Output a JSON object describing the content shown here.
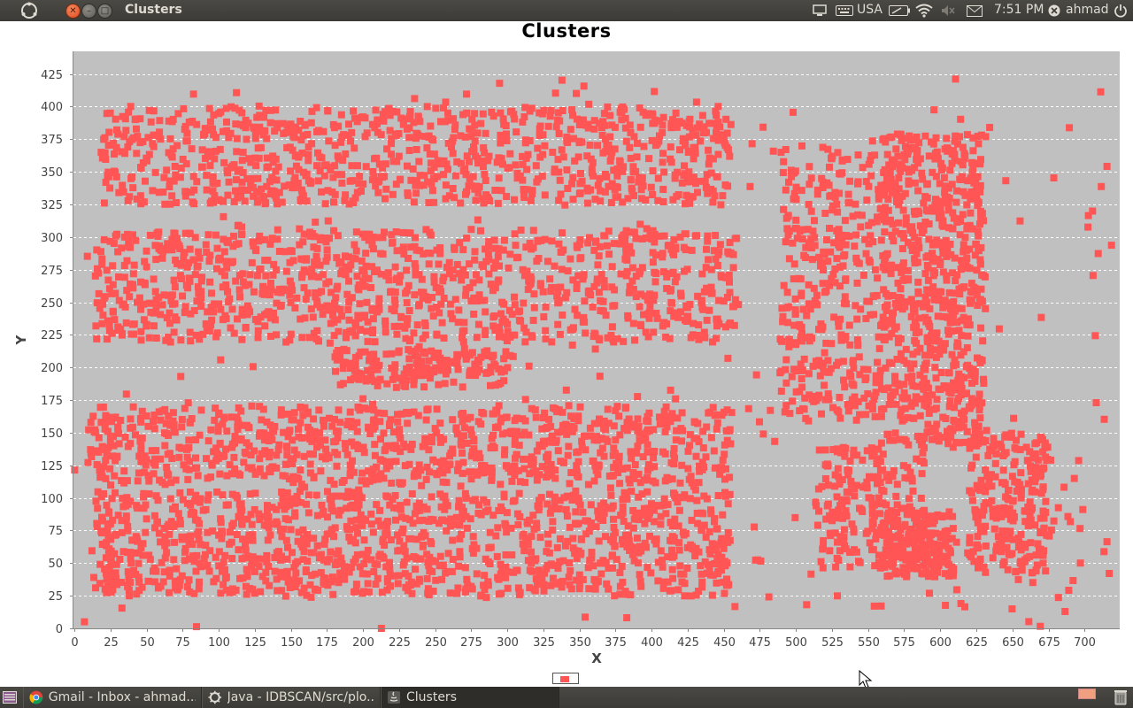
{
  "window": {
    "title": "Clusters"
  },
  "top_panel": {
    "keyboard_layout": "USA",
    "clock": "7:51 PM",
    "user": "ahmad",
    "icons": [
      "ubuntu-logo-icon",
      "display-icon",
      "keyboard-icon",
      "battery-icon",
      "wifi-icon",
      "volume-muted-icon",
      "mail-icon",
      "user-icon",
      "power-icon"
    ]
  },
  "taskbar": {
    "tasks": [
      {
        "label": "Gmail - Inbox - ahmad...",
        "icon": "chrome-icon"
      },
      {
        "label": "Java - IDBSCAN/src/plo...",
        "icon": "eclipse-icon"
      },
      {
        "label": "Clusters",
        "icon": "java-icon"
      }
    ]
  },
  "colors": {
    "point": "#ff5555",
    "plot_background": "#c0c0c0",
    "panel": "#3c3b37"
  },
  "chart_data": {
    "type": "scatter",
    "title": "Clusters",
    "xlabel": "X",
    "ylabel": "Y",
    "xlim": [
      0,
      725
    ],
    "ylim": [
      0,
      430
    ],
    "x_ticks": [
      0,
      25,
      50,
      75,
      100,
      125,
      150,
      175,
      200,
      225,
      250,
      275,
      300,
      325,
      350,
      375,
      400,
      425,
      450,
      475,
      500,
      525,
      550,
      575,
      600,
      625,
      650,
      675,
      700
    ],
    "y_ticks": [
      0,
      25,
      50,
      75,
      100,
      125,
      150,
      175,
      200,
      225,
      250,
      275,
      300,
      325,
      350,
      375,
      400,
      425
    ],
    "grid": true,
    "legend": "bottom-center",
    "series": [
      {
        "marker": "square",
        "clusters": [
          {
            "x": [
              20,
              455
            ],
            "y": [
              325,
              400
            ],
            "n": 900
          },
          {
            "x": [
              15,
              460
            ],
            "y": [
              220,
              305
            ],
            "n": 1000
          },
          {
            "x": [
              180,
              305
            ],
            "y": [
              185,
              215
            ],
            "n": 180
          },
          {
            "x": [
              10,
              455
            ],
            "y": [
              110,
              170
            ],
            "n": 850
          },
          {
            "x": [
              15,
              455
            ],
            "y": [
              25,
              105
            ],
            "n": 1100
          },
          {
            "x": [
              490,
              560
            ],
            "y": [
              160,
              370
            ],
            "n": 350
          },
          {
            "x": [
              560,
              630
            ],
            "y": [
              140,
              380
            ],
            "n": 700
          },
          {
            "x": [
              515,
              590
            ],
            "y": [
              45,
              140
            ],
            "n": 220
          },
          {
            "x": [
              560,
              610
            ],
            "y": [
              40,
              90
            ],
            "n": 200
          },
          {
            "x": [
              620,
              675
            ],
            "y": [
              40,
              150
            ],
            "n": 250
          }
        ],
        "noise": {
          "x": [
            0,
            720
          ],
          "y": [
            0,
            425
          ],
          "n": 350
        }
      }
    ]
  }
}
